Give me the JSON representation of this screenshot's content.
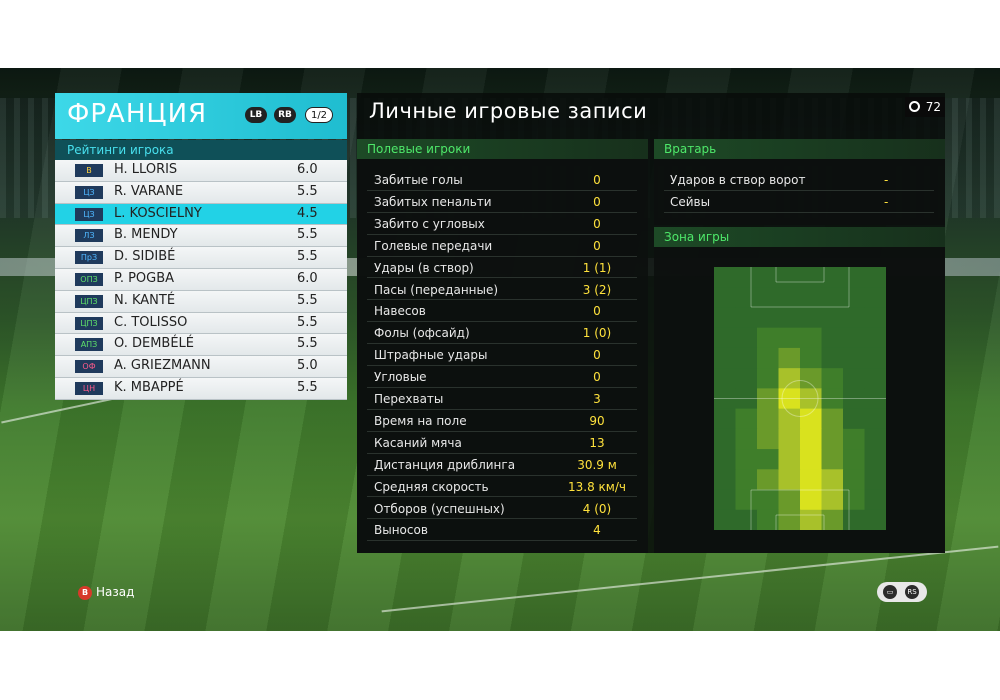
{
  "header": {
    "team_name": "ФРАНЦИЯ",
    "lb_label": "LB",
    "rb_label": "RB",
    "page_indicator": "1/2",
    "ratings_title": "Рейтинги игрока"
  },
  "players": [
    {
      "pos": "В",
      "pos_color": "#ffd23f",
      "name": "H. LLORIS",
      "rating": "6.0"
    },
    {
      "pos": "ЦЗ",
      "pos_color": "#4fb7ff",
      "name": "R. VARANE",
      "rating": "5.5"
    },
    {
      "pos": "ЦЗ",
      "pos_color": "#4fb7ff",
      "name": "L. KOSCIELNY",
      "rating": "4.5",
      "selected": true
    },
    {
      "pos": "ЛЗ",
      "pos_color": "#4fb7ff",
      "name": "B. MENDY",
      "rating": "5.5"
    },
    {
      "pos": "ПрЗ",
      "pos_color": "#4fb7ff",
      "name": "D. SIDIBÉ",
      "rating": "5.5"
    },
    {
      "pos": "ОПЗ",
      "pos_color": "#5fe06a",
      "name": "P. POGBA",
      "rating": "6.0"
    },
    {
      "pos": "ЦПЗ",
      "pos_color": "#5fe06a",
      "name": "N. KANTÉ",
      "rating": "5.5"
    },
    {
      "pos": "ЦПЗ",
      "pos_color": "#5fe06a",
      "name": "C. TOLISSO",
      "rating": "5.5"
    },
    {
      "pos": "АПЗ",
      "pos_color": "#5fe06a",
      "name": "O. DEMBÉLÉ",
      "rating": "5.5"
    },
    {
      "pos": "ОФ",
      "pos_color": "#ff5a8a",
      "name": "A. GRIEZMANN",
      "rating": "5.0"
    },
    {
      "pos": "ЦН",
      "pos_color": "#ff5a8a",
      "name": "K. MBAPPÉ",
      "rating": "5.5"
    }
  ],
  "records": {
    "title": "Личные игровые записи",
    "timer": "72",
    "field_section": "Полевые игроки",
    "gk_section": "Вратарь",
    "zone_section": "Зона игры",
    "field_stats": [
      {
        "label": "Забитые голы",
        "value": "0"
      },
      {
        "label": "Забитых пенальти",
        "value": "0"
      },
      {
        "label": "Забито с угловых",
        "value": "0"
      },
      {
        "label": "Голевые передачи",
        "value": "0"
      },
      {
        "label": "Удары (в створ)",
        "value": "1 (1)"
      },
      {
        "label": "Пасы (переданные)",
        "value": "3 (2)"
      },
      {
        "label": "Навесов",
        "value": "0"
      },
      {
        "label": "Фолы (офсайд)",
        "value": "1 (0)"
      },
      {
        "label": "Штрафные удары",
        "value": "0"
      },
      {
        "label": "Угловые",
        "value": "0"
      },
      {
        "label": "Перехваты",
        "value": "3"
      },
      {
        "label": "Время на поле",
        "value": "90"
      },
      {
        "label": "Касаний мяча",
        "value": "13"
      },
      {
        "label": "Дистанция дриблинга",
        "value": "30.9 м"
      },
      {
        "label": "Средняя скорость",
        "value": "13.8 км/ч"
      },
      {
        "label": "Отборов (успешных)",
        "value": "4 (0)"
      },
      {
        "label": "Выносов",
        "value": "4"
      }
    ],
    "gk_stats": [
      {
        "label": "Ударов в створ ворот",
        "value": "-"
      },
      {
        "label": "Сейвы",
        "value": "-"
      }
    ]
  },
  "heatmap": {
    "colors": [
      "#2f6a2a",
      "#3f7e2a",
      "#6a9a2a",
      "#a8c12a",
      "#d9e21e"
    ],
    "grid": [
      [
        0,
        0,
        0,
        0,
        0,
        0,
        0,
        0
      ],
      [
        0,
        0,
        0,
        0,
        0,
        0,
        0,
        0
      ],
      [
        0,
        0,
        0,
        0,
        0,
        0,
        0,
        0
      ],
      [
        0,
        0,
        1,
        1,
        1,
        0,
        0,
        0
      ],
      [
        0,
        0,
        1,
        2,
        1,
        0,
        0,
        0
      ],
      [
        0,
        0,
        1,
        3,
        2,
        1,
        0,
        0
      ],
      [
        0,
        0,
        2,
        4,
        3,
        1,
        0,
        0
      ],
      [
        0,
        1,
        2,
        3,
        4,
        2,
        0,
        0
      ],
      [
        0,
        1,
        2,
        3,
        4,
        2,
        1,
        0
      ],
      [
        0,
        1,
        1,
        3,
        4,
        2,
        1,
        0
      ],
      [
        0,
        1,
        2,
        3,
        4,
        3,
        1,
        0
      ],
      [
        0,
        1,
        1,
        2,
        4,
        3,
        1,
        0
      ],
      [
        0,
        0,
        1,
        2,
        3,
        2,
        0,
        0
      ]
    ]
  },
  "footer": {
    "back_key": "B",
    "back_label": "Назад"
  }
}
